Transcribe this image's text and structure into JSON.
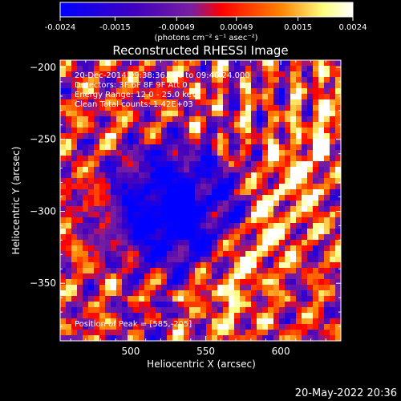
{
  "chart_data": {
    "type": "heatmap",
    "title": "Reconstructed RHESSI Image",
    "xlabel": "Heliocentric X (arcsec)",
    "ylabel": "Heliocentric Y (arcsec)",
    "xlim": [
      453,
      640
    ],
    "ylim": [
      -390,
      -195
    ],
    "x_ticks": [
      "500",
      "550",
      "600"
    ],
    "x_tick_values": [
      500,
      550,
      600
    ],
    "y_ticks": [
      "-200",
      "-250",
      "-300",
      "-350"
    ],
    "y_tick_values": [
      -200,
      -250,
      -300,
      -350
    ],
    "colorbar": {
      "tick_labels": [
        "-0.0024",
        "-0.0015",
        "-0.00049",
        "0.00049",
        "0.0015",
        "0.0024"
      ],
      "range": [
        -0.0024,
        0.0024
      ],
      "unit_label": "(photons cm⁻² s⁻¹ asec⁻²)",
      "colors": [
        "#0000ff",
        "#4000c0",
        "#7a1fa0",
        "#ff0000",
        "#ff8000",
        "#ffff80",
        "#ffffff"
      ]
    },
    "annotations": [
      "20-Dec-2014 09:38:36.000 to 09:40:24.000",
      "Detectors: 3F 6F 8F 9F  Att 0",
      "Energy Range: 12.0 - 25.0 keV",
      "Clean     Total counts: 1.42E+03",
      "Position of Peak = [585,-205]"
    ],
    "peak_position": [
      585,
      -205
    ]
  },
  "footer": {
    "timestamp": "20-May-2022 20:36"
  }
}
